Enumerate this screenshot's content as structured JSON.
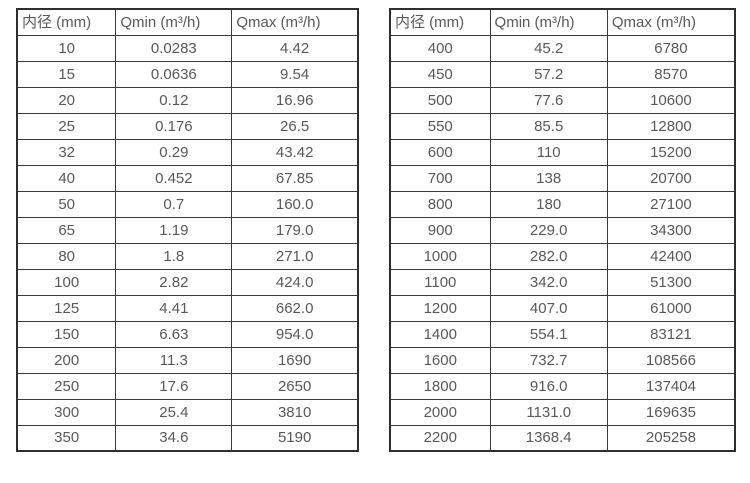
{
  "colors": {
    "border": "#3a3a3a",
    "outer_border": "#2f2f2f",
    "text": "#595959",
    "background": "#ffffff"
  },
  "tables": [
    {
      "name": "flow-spec-table-small-diameters",
      "headers": [
        "内径 (mm)",
        "Qmin (m³/h)",
        "Qmax (m³/h)"
      ],
      "rows": [
        [
          "10",
          "0.0283",
          "4.42"
        ],
        [
          "15",
          "0.0636",
          "9.54"
        ],
        [
          "20",
          "0.12",
          "16.96"
        ],
        [
          "25",
          "0.176",
          "26.5"
        ],
        [
          "32",
          "0.29",
          "43.42"
        ],
        [
          "40",
          "0.452",
          "67.85"
        ],
        [
          "50",
          "0.7",
          "160.0"
        ],
        [
          "65",
          "1.19",
          "179.0"
        ],
        [
          "80",
          "1.8",
          "271.0"
        ],
        [
          "100",
          "2.82",
          "424.0"
        ],
        [
          "125",
          "4.41",
          "662.0"
        ],
        [
          "150",
          "6.63",
          "954.0"
        ],
        [
          "200",
          "11.3",
          "1690"
        ],
        [
          "250",
          "17.6",
          "2650"
        ],
        [
          "300",
          "25.4",
          "3810"
        ],
        [
          "350",
          "34.6",
          "5190"
        ]
      ]
    },
    {
      "name": "flow-spec-table-large-diameters",
      "headers": [
        "内径 (mm)",
        "Qmin (m³/h)",
        "Qmax (m³/h)"
      ],
      "rows": [
        [
          "400",
          "45.2",
          "6780"
        ],
        [
          "450",
          "57.2",
          "8570"
        ],
        [
          "500",
          "77.6",
          "10600"
        ],
        [
          "550",
          "85.5",
          "12800"
        ],
        [
          "600",
          "110",
          "15200"
        ],
        [
          "700",
          "138",
          "20700"
        ],
        [
          "800",
          "180",
          "27100"
        ],
        [
          "900",
          "229.0",
          "34300"
        ],
        [
          "1000",
          "282.0",
          "42400"
        ],
        [
          "1100",
          "342.0",
          "51300"
        ],
        [
          "1200",
          "407.0",
          "61000"
        ],
        [
          "1400",
          "554.1",
          "83121"
        ],
        [
          "1600",
          "732.7",
          "108566"
        ],
        [
          "1800",
          "916.0",
          "137404"
        ],
        [
          "2000",
          "1131.0",
          "169635"
        ],
        [
          "2200",
          "1368.4",
          "205258"
        ]
      ]
    }
  ]
}
